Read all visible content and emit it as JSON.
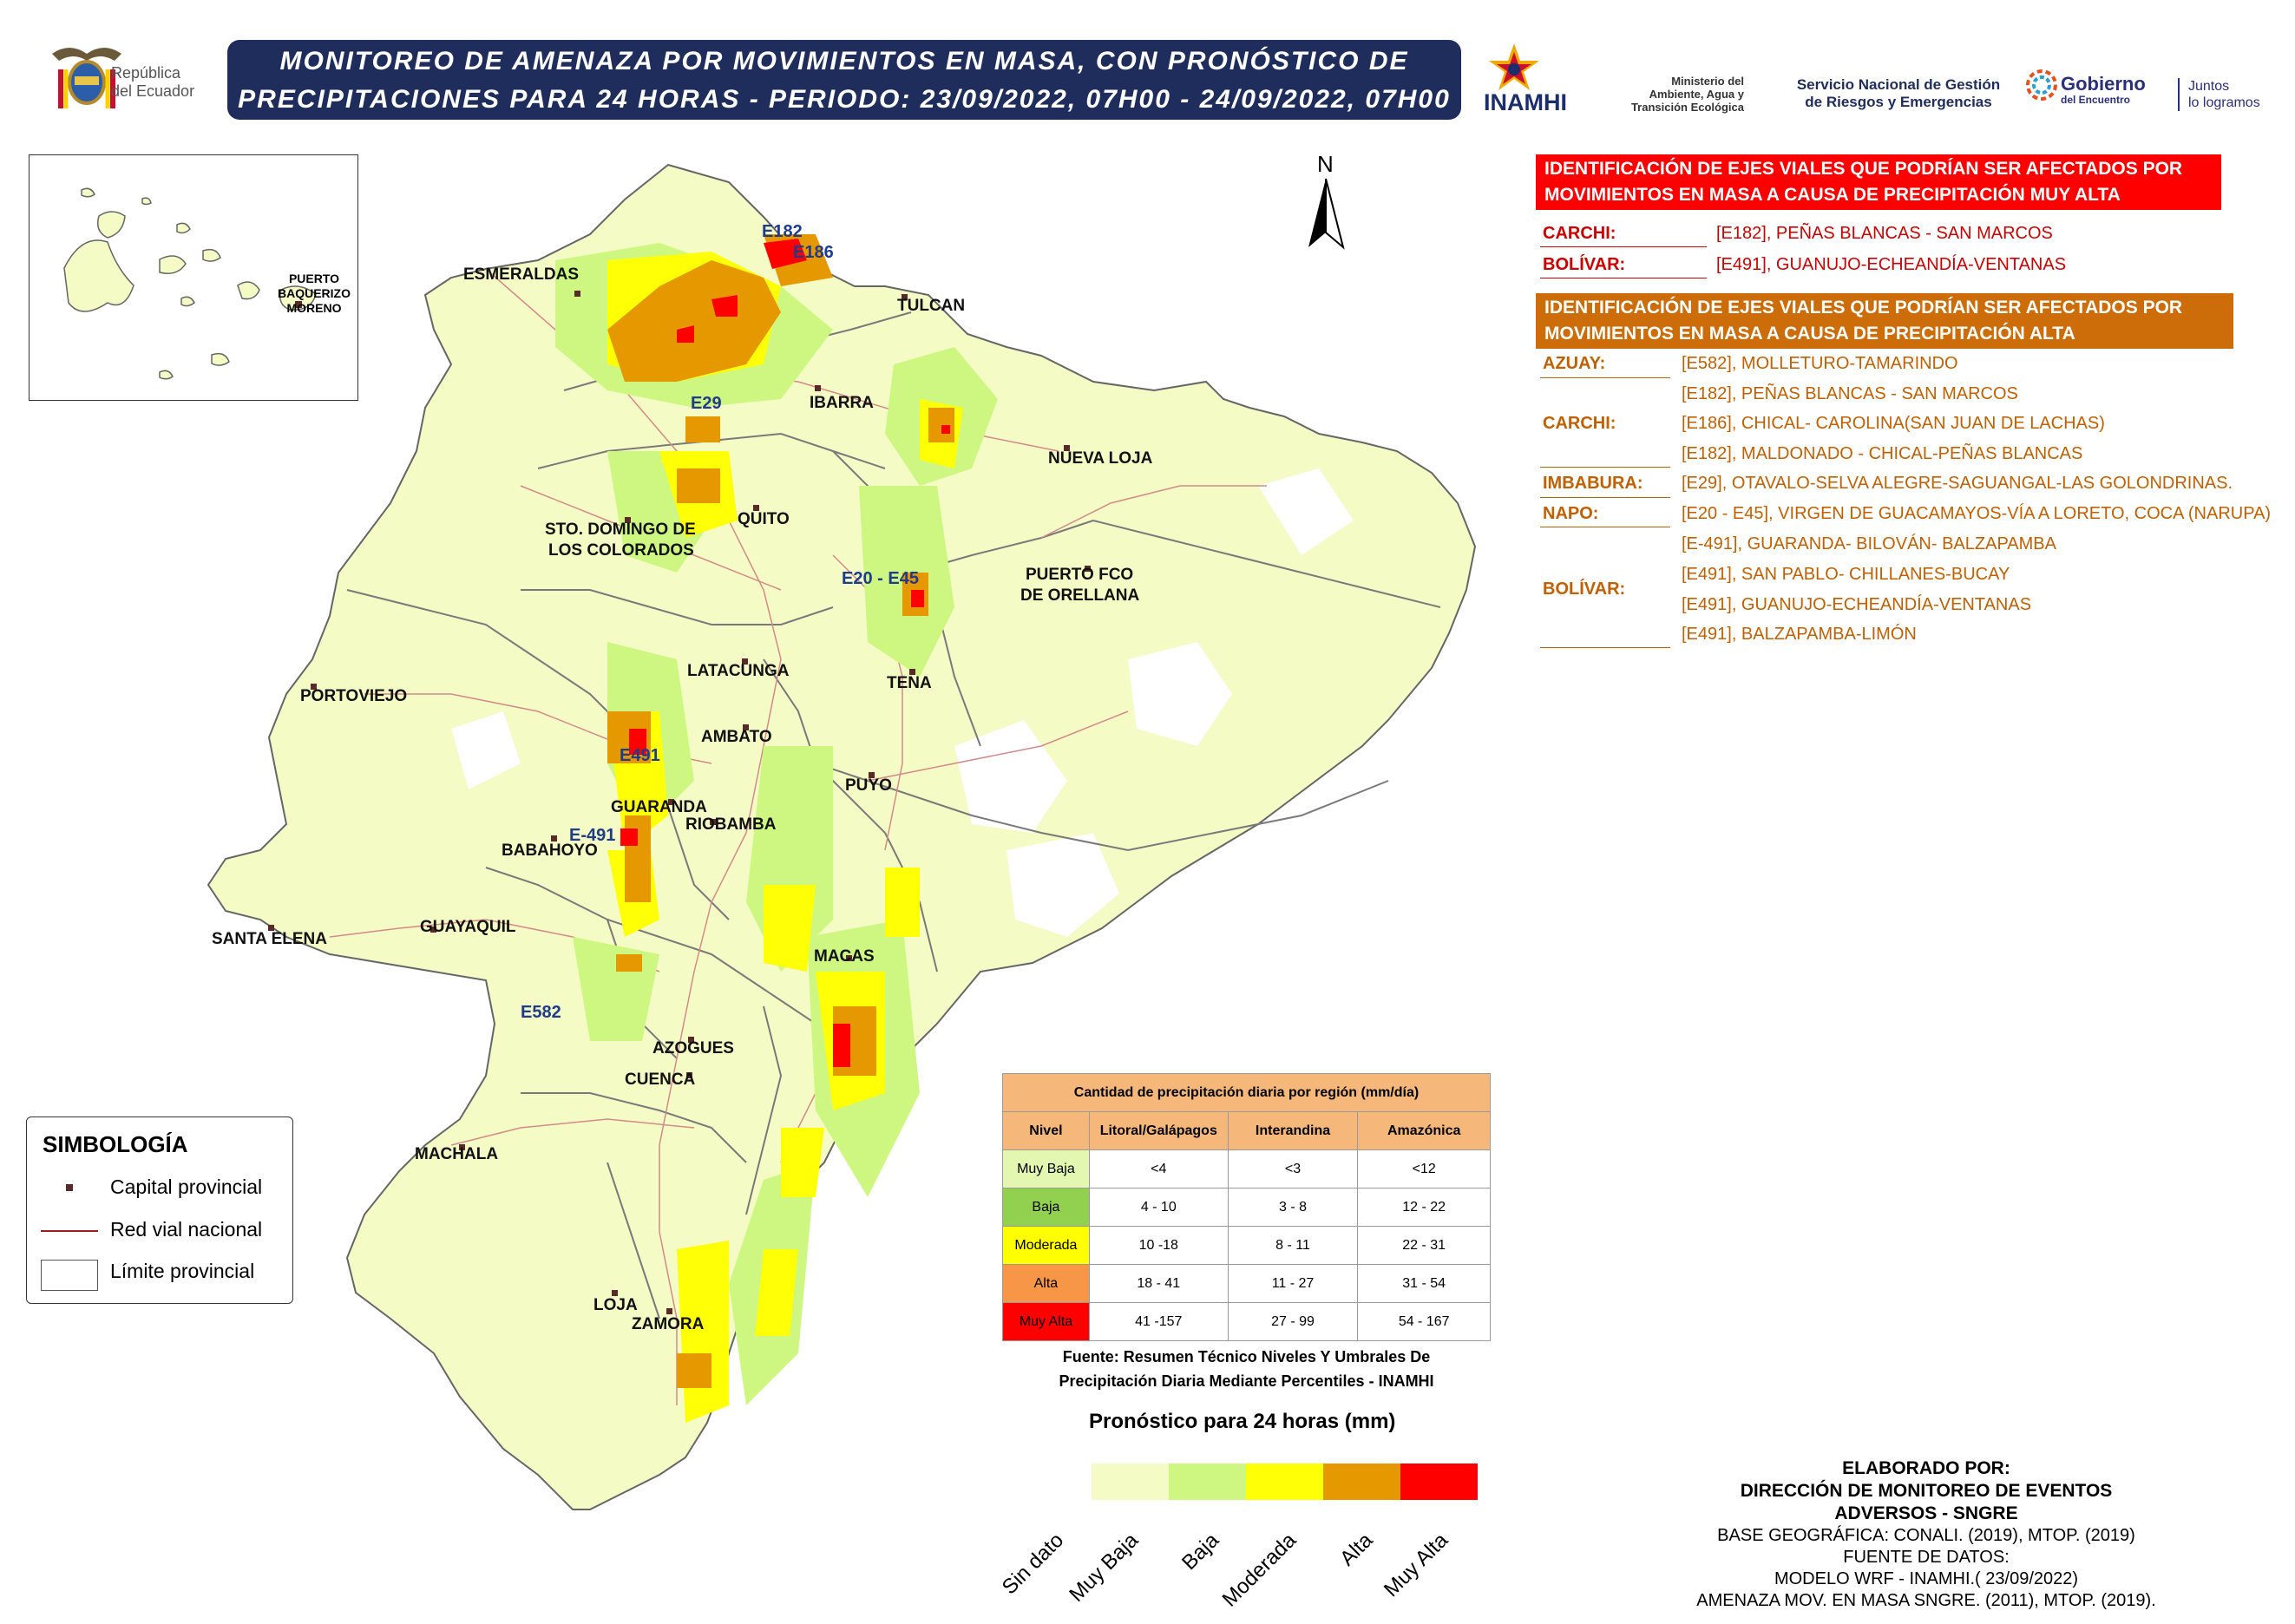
{
  "header": {
    "title_line1": "MONITOREO DE AMENAZA POR MOVIMIENTOS EN MASA, CON PRONÓSTICO DE",
    "title_line2": "PRECIPITACIONES PARA 24 HORAS - PERIODO: 23/09/2022, 07H00 - 24/09/2022, 07H00",
    "republica_line1": "República",
    "republica_line2": "del Ecuador",
    "inamhi": "INAMHI",
    "ministerio_line1": "Ministerio del",
    "ministerio_line2": "Ambiente, Agua y",
    "ministerio_line3": "Transición Ecológica",
    "sngre_line1": "Servicio Nacional de Gestión",
    "sngre_line2": "de Riesgos y Emergencias",
    "gobierno_main": "Gobierno",
    "gobierno_sub": "del Encuentro",
    "juntos_line1": "Juntos",
    "juntos_line2": "lo logramos"
  },
  "map": {
    "north": "N",
    "cities": [
      {
        "name": "ESMERALDAS"
      },
      {
        "name": "TULCAN"
      },
      {
        "name": "IBARRA"
      },
      {
        "name": "NUEVA LOJA"
      },
      {
        "name": "QUITO"
      },
      {
        "name": "STO. DOMINGO DE"
      },
      {
        "name": "LOS COLORADOS"
      },
      {
        "name": "PUERTO FCO"
      },
      {
        "name": "DE ORELLANA"
      },
      {
        "name": "TENA"
      },
      {
        "name": "LATACUNGA"
      },
      {
        "name": "PORTOVIEJO"
      },
      {
        "name": "AMBATO"
      },
      {
        "name": "PUYO"
      },
      {
        "name": "GUARANDA"
      },
      {
        "name": "RIOBAMBA"
      },
      {
        "name": "BABAHOYO"
      },
      {
        "name": "SANTA ELENA"
      },
      {
        "name": "GUAYAQUIL"
      },
      {
        "name": "MACAS"
      },
      {
        "name": "AZOGUES"
      },
      {
        "name": "CUENCA"
      },
      {
        "name": "MACHALA"
      },
      {
        "name": "LOJA"
      },
      {
        "name": "ZAMORA"
      }
    ],
    "roads": [
      {
        "name": "E182"
      },
      {
        "name": "E186"
      },
      {
        "name": "E29"
      },
      {
        "name": "E20 - E45"
      },
      {
        "name": "E491"
      },
      {
        "name": "E-491"
      },
      {
        "name": "E582"
      }
    ],
    "inset_label_line1": "PUERTO",
    "inset_label_line2": "BAQUERIZO",
    "inset_label_line3": "MORENO"
  },
  "muy_alta_panel": {
    "title_line1": "IDENTIFICACIÓN DE EJES VIALES QUE PODRÍAN SER AFECTADOS POR",
    "title_line2": "MOVIMIENTOS EN MASA A CAUSA DE  PRECIPITACIÓN MUY ALTA",
    "color": "#ff0000",
    "rows": [
      {
        "province": "CARCHI:",
        "road": "[E182], PEÑAS BLANCAS - SAN MARCOS"
      },
      {
        "province": "BOLÍVAR:",
        "road": "[E491], GUANUJO-ECHEANDÍA-VENTANAS"
      }
    ]
  },
  "alta_panel": {
    "title_line1": "IDENTIFICACIÓN DE EJES VIALES QUE PODRÍAN SER AFECTADOS POR",
    "title_line2": "MOVIMIENTOS EN MASA A CAUSA DE  PRECIPITACIÓN ALTA",
    "color": "#cc6d0a",
    "provinces": [
      "AZUAY:",
      "CARCHI:",
      "IMBABURA:",
      "NAPO:",
      "BOLÍVAR:"
    ],
    "roads": [
      "[E582], MOLLETURO-TAMARINDO",
      "[E182], PEÑAS BLANCAS - SAN MARCOS",
      "[E186], CHICAL- CAROLINA(SAN JUAN DE LACHAS)",
      "[E182], MALDONADO - CHICAL-PEÑAS BLANCAS",
      "[E29], OTAVALO-SELVA ALEGRE-SAGUANGAL-LAS GOLONDRINAS.",
      "[E20 - E45], VIRGEN DE GUACAMAYOS-VÍA A LORETO, COCA (NARUPA)",
      "[E-491], GUARANDA- BILOVÁN- BALZAPAMBA",
      "[E491], SAN PABLO- CHILLANES-BUCAY",
      "[E491], GUANUJO-ECHEANDÍA-VENTANAS",
      "[E491], BALZAPAMBA-LIMÓN"
    ]
  },
  "symbology": {
    "title": "SIMBOLOGÍA",
    "items": [
      "Capital provincial",
      "Red vial nacional",
      "Límite provincial"
    ]
  },
  "thresholds": {
    "title": "Cantidad de precipitación diaria por región (mm/día)",
    "headers": [
      "Nivel",
      "Litoral/Galápagos",
      "Interandina",
      "Amazónica"
    ],
    "rows": [
      {
        "level": "Muy Baja",
        "color": "#e3f7b0",
        "litoral": "<4",
        "interandina": "<3",
        "amazonica": "<12"
      },
      {
        "level": "Baja",
        "color": "#92d050",
        "litoral": "4 - 10",
        "interandina": "3 - 8",
        "amazonica": "12 - 22"
      },
      {
        "level": "Moderada",
        "color": "#ffff00",
        "litoral": "10 -18",
        "interandina": "8 - 11",
        "amazonica": "22 - 31"
      },
      {
        "level": "Alta",
        "color": "#f79646",
        "litoral": "18 - 41",
        "interandina": "11 - 27",
        "amazonica": "31 - 54"
      },
      {
        "level": "Muy Alta",
        "color": "#ff0000",
        "litoral": "41 -157",
        "interandina": "27 - 99",
        "amazonica": "54 - 167"
      }
    ],
    "source_line1": "Fuente: Resumen Técnico Niveles Y Umbrales De",
    "source_line2": "Precipitación Diaria Mediante Percentiles - INAMHI"
  },
  "legend": {
    "title": "Pronóstico para 24 horas (mm)",
    "items": [
      {
        "label": "Sin dato",
        "color": "#f4fbc4"
      },
      {
        "label": "Muy Baja",
        "color": "#cdf781"
      },
      {
        "label": "Baja",
        "color": "#ffff05"
      },
      {
        "label": "Moderada",
        "color": "#e69800"
      },
      {
        "label": "Alta",
        "color": "#ff0000"
      },
      {
        "label": "Muy Alta",
        "color": null
      }
    ]
  },
  "credits": {
    "line1": "ELABORADO POR:",
    "line2": "DIRECCIÓN DE MONITOREO DE EVENTOS",
    "line3": "ADVERSOS - SNGRE",
    "line4": "BASE GEOGRÁFICA: CONALI. (2019), MTOP. (2019)",
    "line5": "FUENTE DE DATOS:",
    "line6": "MODELO WRF - INAMHI.( 23/09/2022)",
    "line7": "AMENAZA MOV. EN MASA SNGRE. (2011), MTOP. (2019)."
  }
}
